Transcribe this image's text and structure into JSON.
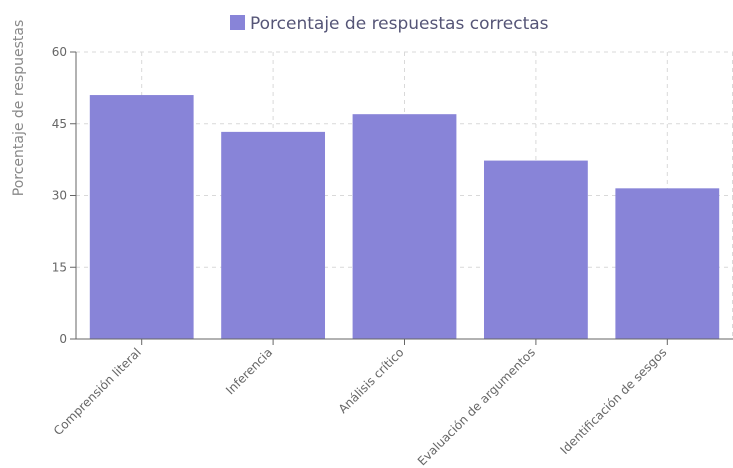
{
  "chart_data": {
    "type": "bar",
    "title": "",
    "xlabel": "",
    "ylabel": "Porcentaje de respuestas",
    "ylim": [
      0,
      60
    ],
    "yticks": [
      0,
      15,
      30,
      45,
      60
    ],
    "categories": [
      "Comprensión literal",
      "Inferencia",
      "Análisis crítico",
      "Evaluación de argumentos",
      "Identificación de sesgos"
    ],
    "series": [
      {
        "name": "Porcentaje de respuestas correctas",
        "values": [
          51,
          43.3,
          47,
          37.3,
          31.5
        ],
        "color": "#8884d8"
      }
    ],
    "grid": true,
    "legend_position": "top-center"
  }
}
